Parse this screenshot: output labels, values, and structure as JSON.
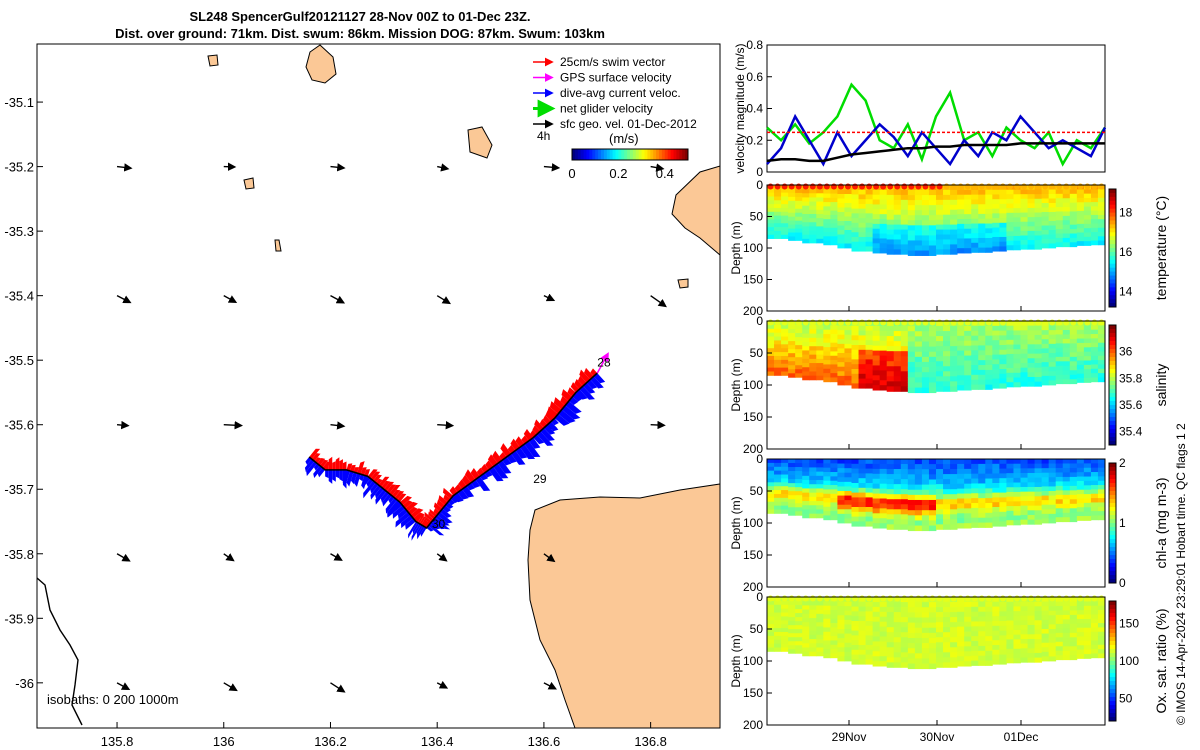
{
  "title": {
    "line1": "SL248 SpencerGulf20121127 28-Nov 00Z to 01-Dec 23Z.",
    "line2": "Dist. over ground: 71km. Dist. swum: 86km. Mission DOG: 87km. Swum: 103km"
  },
  "footer": "© IMOS 14-Apr-2024 23:29:01 Hobart time. QC flags 1  2",
  "chart_data": [
    {
      "type": "map",
      "xticks": [
        "135.8",
        "136",
        "136.2",
        "136.4",
        "136.6",
        "136.8"
      ],
      "xtick_values": [
        135.8,
        136.0,
        136.2,
        136.4,
        136.6,
        136.8
      ],
      "yticks": [
        "-35.1",
        "-35.2",
        "-35.3",
        "-35.4",
        "-35.5",
        "-35.6",
        "-35.7",
        "-35.8",
        "-35.9",
        "-36"
      ],
      "ytick_values": [
        -35.1,
        -35.2,
        -35.3,
        -35.4,
        -35.5,
        -35.6,
        -35.7,
        -35.8,
        -35.9,
        -36.0
      ],
      "xlim": [
        135.65,
        136.93
      ],
      "ylim": [
        -36.07,
        -35.01
      ],
      "legend": {
        "placement": "top-right",
        "entries": [
          {
            "label": "25cm/s swim vector",
            "color": "#ff0000"
          },
          {
            "label": "GPS surface velocity",
            "color": "#ff00ff"
          },
          {
            "label": "dive-avg current veloc.",
            "color": "#0000ff"
          },
          {
            "label": "net glider velocity",
            "color": "#00dd00"
          },
          {
            "label": "sfc geo. vel. 01-Dec-2012",
            "color": "#000000"
          }
        ]
      },
      "colorbar": {
        "left_label": "4h",
        "unit": "(m/s)",
        "ticks": [
          "0",
          "0.2",
          "0.4"
        ],
        "range": [
          0,
          0.5
        ]
      },
      "isobaths_label": "isobaths: 0   200  1000m",
      "day_labels": [
        {
          "text": "28",
          "lon": 136.7,
          "lat": -35.51
        },
        {
          "text": "29",
          "lon": 136.58,
          "lat": -35.69
        },
        {
          "text": "30",
          "lon": 136.39,
          "lat": -35.76
        }
      ],
      "track": [
        [
          136.7,
          -35.52
        ],
        [
          136.66,
          -35.55
        ],
        [
          136.62,
          -35.59
        ],
        [
          136.58,
          -35.62
        ],
        [
          136.53,
          -35.65
        ],
        [
          136.48,
          -35.68
        ],
        [
          136.43,
          -35.71
        ],
        [
          136.4,
          -35.74
        ],
        [
          136.38,
          -35.76
        ],
        [
          136.36,
          -35.75
        ],
        [
          136.33,
          -35.72
        ],
        [
          136.3,
          -35.7
        ],
        [
          136.27,
          -35.68
        ],
        [
          136.23,
          -35.67
        ],
        [
          136.19,
          -35.67
        ],
        [
          136.16,
          -35.65
        ]
      ],
      "current_arrows_grid": {
        "lons": [
          135.8,
          136.0,
          136.2,
          136.4,
          136.6,
          136.8
        ],
        "lats": [
          -35.2,
          -35.4,
          -35.6,
          -35.8,
          -36.0
        ]
      }
    },
    {
      "type": "line",
      "ylabel": "velocity magnitude (m/s)",
      "ylim": [
        0,
        0.8
      ],
      "yticks": [
        "0",
        "0.2",
        "0.4",
        "0.6",
        "0.8"
      ],
      "series": [
        {
          "color": "#00dd00",
          "values": [
            0.28,
            0.2,
            0.3,
            0.18,
            0.25,
            0.35,
            0.55,
            0.45,
            0.2,
            0.15,
            0.3,
            0.08,
            0.35,
            0.5,
            0.2,
            0.25,
            0.1,
            0.28,
            0.2,
            0.15,
            0.25,
            0.05,
            0.2,
            0.15,
            0.28
          ]
        },
        {
          "color": "#0000cc",
          "values": [
            0.05,
            0.15,
            0.35,
            0.2,
            0.05,
            0.25,
            0.1,
            0.2,
            0.3,
            0.22,
            0.1,
            0.25,
            0.15,
            0.05,
            0.2,
            0.1,
            0.25,
            0.2,
            0.35,
            0.25,
            0.15,
            0.2,
            0.15,
            0.1,
            0.28
          ]
        },
        {
          "color": "#000000",
          "values": [
            0.07,
            0.08,
            0.08,
            0.07,
            0.07,
            0.09,
            0.11,
            0.12,
            0.13,
            0.14,
            0.15,
            0.15,
            0.16,
            0.16,
            0.17,
            0.17,
            0.17,
            0.17,
            0.18,
            0.18,
            0.18,
            0.18,
            0.18,
            0.18,
            0.18
          ]
        },
        {
          "color": "#ff0000",
          "values": [
            0.25,
            0.25,
            0.25,
            0.25,
            0.25,
            0.25,
            0.25,
            0.25,
            0.25,
            0.25,
            0.25,
            0.25,
            0.25,
            0.25,
            0.25,
            0.25,
            0.25,
            0.25,
            0.25,
            0.25,
            0.25,
            0.25,
            0.25,
            0.25,
            0.25
          ]
        }
      ]
    },
    {
      "type": "heatmap",
      "variable": "temperature",
      "ylabel": "Depth (m)",
      "ylim": [
        200,
        0
      ],
      "yticks": [
        "0",
        "50",
        "100",
        "150",
        "200"
      ],
      "colorbar_label": "temperature (°C)",
      "crange": [
        13.2,
        19.2
      ],
      "cticks": [
        "14",
        "16",
        "18"
      ],
      "ctick_values": [
        14,
        16,
        18
      ],
      "surface_value": 17.8,
      "deep_value": 15.2,
      "max_depth": [
        85,
        88,
        92,
        95,
        100,
        105,
        108,
        110,
        112,
        112,
        110,
        108,
        107,
        105,
        103,
        102,
        100,
        98,
        96,
        95
      ]
    },
    {
      "type": "heatmap",
      "variable": "salinity",
      "ylabel": "Depth (m)",
      "ylim": [
        200,
        0
      ],
      "yticks": [
        "0",
        "50",
        "100",
        "150",
        "200"
      ],
      "colorbar_label": "salinity",
      "crange": [
        35.3,
        36.2
      ],
      "cticks": [
        "35.4",
        "35.6",
        "35.8",
        "36"
      ],
      "ctick_values": [
        35.4,
        35.6,
        35.8,
        36.0
      ],
      "surface_value": 35.75,
      "deep_value": 35.95,
      "max_depth": [
        85,
        88,
        92,
        95,
        100,
        105,
        108,
        110,
        112,
        112,
        110,
        108,
        107,
        105,
        103,
        102,
        100,
        98,
        96,
        95
      ]
    },
    {
      "type": "heatmap",
      "variable": "chl-a",
      "ylabel": "Depth (m)",
      "ylim": [
        200,
        0
      ],
      "yticks": [
        "0",
        "50",
        "100",
        "150",
        "200"
      ],
      "colorbar_label": "chl-a (mg m-3)",
      "crange": [
        0,
        2
      ],
      "cticks": [
        "0",
        "1",
        "2"
      ],
      "ctick_values": [
        0,
        1,
        2
      ],
      "surface_value": 0.3,
      "deep_value": 1.0,
      "max_depth": [
        85,
        88,
        92,
        95,
        100,
        105,
        108,
        110,
        112,
        112,
        110,
        108,
        107,
        105,
        103,
        102,
        100,
        98,
        96,
        95
      ]
    },
    {
      "type": "heatmap",
      "variable": "oxygen saturation",
      "ylabel": "Depth (m)",
      "ylim": [
        200,
        0
      ],
      "yticks": [
        "0",
        "50",
        "100",
        "150",
        "200"
      ],
      "colorbar_label": "Ox. sat. ratio (%)",
      "crange": [
        20,
        180
      ],
      "cticks": [
        "50",
        "100",
        "150"
      ],
      "ctick_values": [
        50,
        100,
        150
      ],
      "surface_value": 110,
      "deep_value": 108,
      "max_depth": [
        85,
        88,
        92,
        95,
        100,
        105,
        108,
        110,
        112,
        112,
        110,
        108,
        107,
        105,
        103,
        102,
        100,
        98,
        96,
        95
      ],
      "xticks": [
        "29Nov",
        "30Nov",
        "01Dec"
      ]
    }
  ]
}
